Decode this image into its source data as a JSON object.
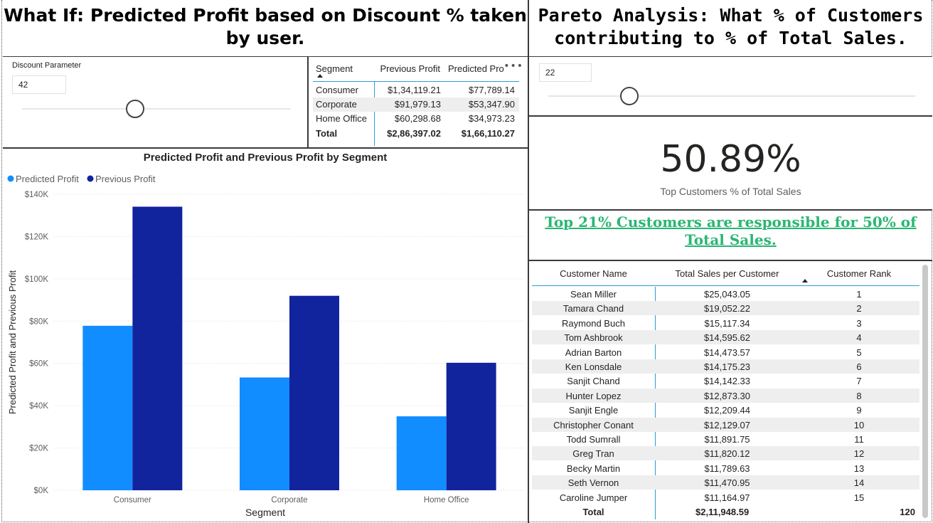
{
  "left_title": "What If: Predicted Profit based on Discount % taken by user.",
  "right_title": "Pareto Analysis: What % of Customers contributing to % of Total Sales.",
  "discount_slicer": {
    "label": "Discount Parameter",
    "value": "42",
    "fraction": 0.42
  },
  "pareto_slicer": {
    "value": "22",
    "fraction": 0.22
  },
  "segment_table": {
    "headers": [
      "Segment",
      "Previous Profit",
      "Predicted Pro"
    ],
    "more_icon": "ellipsis-icon",
    "rows": [
      [
        "Consumer",
        "$1,34,119.21",
        "$77,789.14"
      ],
      [
        "Corporate",
        "$91,979.13",
        "$53,347.90"
      ],
      [
        "Home Office",
        "$60,298.68",
        "$34,973.23"
      ]
    ],
    "total": [
      "Total",
      "$2,86,397.02",
      "$1,66,110.27"
    ]
  },
  "chart_data": {
    "type": "bar",
    "title": "Predicted Profit and Previous Profit by Segment",
    "xlabel": "Segment",
    "ylabel": "Predicted Profit and Previous Profit",
    "categories": [
      "Consumer",
      "Corporate",
      "Home Office"
    ],
    "series": [
      {
        "name": "Predicted Profit",
        "color": "#118dff",
        "values": [
          77789.14,
          53347.9,
          34973.23
        ]
      },
      {
        "name": "Previous Profit",
        "color": "#12239e",
        "values": [
          134119.21,
          91979.13,
          60298.68
        ]
      }
    ],
    "ylim": [
      0,
      140000
    ],
    "yticks": [
      0,
      20000,
      40000,
      60000,
      80000,
      100000,
      120000,
      140000
    ],
    "ytick_labels": [
      "$0K",
      "$20K",
      "$40K",
      "$60K",
      "$80K",
      "$100K",
      "$120K",
      "$140K"
    ],
    "legend_position": "top-left",
    "grid": true
  },
  "kpi": {
    "value": "50.89%",
    "label": "Top Customers % of Total Sales"
  },
  "pareto_text": "Top 21% Customers are responsible for 50% of Total Sales. ",
  "customer_table": {
    "headers": [
      "Customer Name",
      "Total Sales per Customer",
      "Customer Rank"
    ],
    "rows": [
      [
        "Sean Miller",
        "$25,043.05",
        "1"
      ],
      [
        "Tamara Chand",
        "$19,052.22",
        "2"
      ],
      [
        "Raymond Buch",
        "$15,117.34",
        "3"
      ],
      [
        "Tom Ashbrook",
        "$14,595.62",
        "4"
      ],
      [
        "Adrian Barton",
        "$14,473.57",
        "5"
      ],
      [
        "Ken Lonsdale",
        "$14,175.23",
        "6"
      ],
      [
        "Sanjit Chand",
        "$14,142.33",
        "7"
      ],
      [
        "Hunter Lopez",
        "$12,873.30",
        "8"
      ],
      [
        "Sanjit Engle",
        "$12,209.44",
        "9"
      ],
      [
        "Christopher Conant",
        "$12,129.07",
        "10"
      ],
      [
        "Todd Sumrall",
        "$11,891.75",
        "11"
      ],
      [
        "Greg Tran",
        "$11,820.12",
        "12"
      ],
      [
        "Becky Martin",
        "$11,789.63",
        "13"
      ],
      [
        "Seth Vernon",
        "$11,470.95",
        "14"
      ],
      [
        "Caroline Jumper",
        "$11,164.97",
        "15"
      ]
    ],
    "total": [
      "Total",
      "$2,11,948.59",
      "120"
    ]
  }
}
